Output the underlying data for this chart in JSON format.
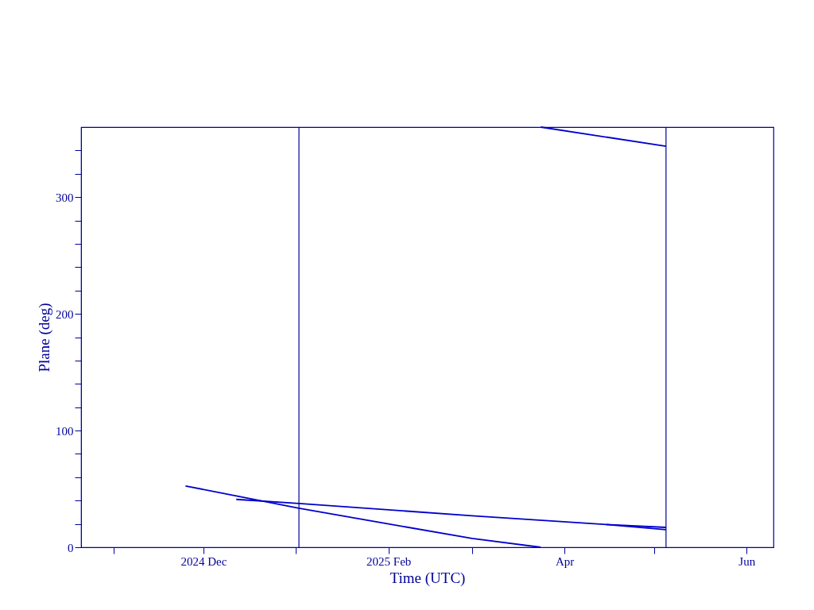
{
  "chart_data": {
    "type": "line",
    "xlabel": "Time (UTC)",
    "ylabel": "Plane (deg)",
    "xlim": [
      "2024-10-21",
      "2025-06-10"
    ],
    "xticks": [
      {
        "value": "2024-11-01",
        "label": null
      },
      {
        "value": "2024-12-01",
        "label": "2024 Dec"
      },
      {
        "value": "2025-01-01",
        "label": null
      },
      {
        "value": "2025-02-01",
        "label": "2025 Feb"
      },
      {
        "value": "2025-03-01",
        "label": null
      },
      {
        "value": "2025-04-01",
        "label": "Apr"
      },
      {
        "value": "2025-05-01",
        "label": null
      },
      {
        "value": "2025-06-01",
        "label": "Jun"
      }
    ],
    "ylim": [
      0,
      360
    ],
    "yticks": [
      0,
      {
        "value": 20,
        "label": null
      },
      {
        "value": 40,
        "label": null
      },
      {
        "value": 60,
        "label": null
      },
      {
        "value": 80,
        "label": null
      },
      100,
      {
        "value": 120,
        "label": null
      },
      {
        "value": 140,
        "label": null
      },
      {
        "value": 160,
        "label": null
      },
      {
        "value": 180,
        "label": null
      },
      200,
      {
        "value": 220,
        "label": null
      },
      {
        "value": 240,
        "label": null
      },
      {
        "value": 260,
        "label": null
      },
      {
        "value": 280,
        "label": null
      },
      300,
      {
        "value": 320,
        "label": null
      },
      {
        "value": 340,
        "label": null
      }
    ],
    "series": [
      {
        "color": "#0000cc",
        "x": [
          "2024-11-25",
          "2024-12-12",
          "2025-01-02",
          "2025-02-01",
          "2025-03-01",
          "2025-03-24"
        ],
        "values": [
          52.5,
          44,
          33.4,
          20,
          7.5,
          0
        ]
      },
      {
        "color": "#0000cc",
        "x": [
          "2025-03-24",
          "2025-05-05"
        ],
        "values": [
          360,
          343.6
        ]
      },
      {
        "color": "#0000cc",
        "x": [
          "2024-12-12",
          "2025-01-02",
          "2025-03-01",
          "2025-04-15",
          "2025-05-05"
        ],
        "values": [
          41,
          37.5,
          27,
          19.5,
          17
        ]
      },
      {
        "color": "#0000cc",
        "x": [
          "2025-04-15",
          "2025-05-05"
        ],
        "values": [
          19.5,
          15
        ]
      }
    ],
    "ref_lines": [
      {
        "axis": "x",
        "value": "2025-01-02",
        "color": "#000099"
      },
      {
        "axis": "x",
        "value": "2025-05-05",
        "color": "#000099"
      }
    ],
    "grid": false,
    "legend": false
  }
}
